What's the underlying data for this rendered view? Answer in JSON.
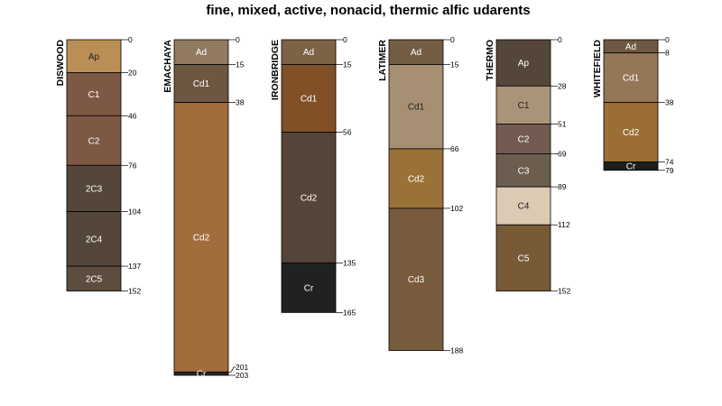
{
  "chart_data": {
    "type": "soil-profile-sketch",
    "title": "fine, mixed, active, nonacid, thermic alfic udarents",
    "depth_unit": "",
    "ylim": [
      0,
      205
    ],
    "profiles": [
      {
        "name": "DISWOOD",
        "horizons": [
          {
            "name": "Ap",
            "top": 0,
            "bottom": 20,
            "color": "#b98f55",
            "text": "#222222"
          },
          {
            "name": "C1",
            "top": 20,
            "bottom": 46,
            "color": "#7d5844",
            "text": "#ffffff"
          },
          {
            "name": "C2",
            "top": 46,
            "bottom": 76,
            "color": "#7d5844",
            "text": "#ffffff"
          },
          {
            "name": "2C3",
            "top": 76,
            "bottom": 104,
            "color": "#54473a",
            "text": "#ffffff"
          },
          {
            "name": "2C4",
            "top": 104,
            "bottom": 137,
            "color": "#54473a",
            "text": "#ffffff"
          },
          {
            "name": "2C5",
            "top": 137,
            "bottom": 152,
            "color": "#5c4d3e",
            "text": "#ffffff"
          }
        ]
      },
      {
        "name": "EMACHAYA",
        "horizons": [
          {
            "name": "Ad",
            "top": 0,
            "bottom": 15,
            "color": "#927a61",
            "text": "#ffffff"
          },
          {
            "name": "Cd1",
            "top": 15,
            "bottom": 38,
            "color": "#6d5742",
            "text": "#ffffff"
          },
          {
            "name": "Cd2",
            "top": 38,
            "bottom": 201,
            "color": "#a26d3c",
            "text": "#ffffff"
          },
          {
            "name": "Cr",
            "top": 201,
            "bottom": 203,
            "color": "#2a2724",
            "text": "#ffffff"
          }
        ]
      },
      {
        "name": "IRONBRIDGE",
        "horizons": [
          {
            "name": "Ad",
            "top": 0,
            "bottom": 15,
            "color": "#7d6346",
            "text": "#ffffff"
          },
          {
            "name": "Cd1",
            "top": 15,
            "bottom": 56,
            "color": "#825026",
            "text": "#ffffff"
          },
          {
            "name": "Cd2",
            "top": 56,
            "bottom": 135,
            "color": "#554538",
            "text": "#ffffff"
          },
          {
            "name": "Cr",
            "top": 135,
            "bottom": 165,
            "color": "#1f2221",
            "text": "#ffffff"
          }
        ]
      },
      {
        "name": "LATIMER",
        "horizons": [
          {
            "name": "Ad",
            "top": 0,
            "bottom": 15,
            "color": "#745d45",
            "text": "#ffffff"
          },
          {
            "name": "Cd1",
            "top": 15,
            "bottom": 66,
            "color": "#a68f72",
            "text": "#222222"
          },
          {
            "name": "Cd2",
            "top": 66,
            "bottom": 102,
            "color": "#9a7136",
            "text": "#ffffff"
          },
          {
            "name": "Cd3",
            "top": 102,
            "bottom": 188,
            "color": "#785a3c",
            "text": "#ffffff"
          }
        ]
      },
      {
        "name": "THERMO",
        "horizons": [
          {
            "name": "Ap",
            "top": 0,
            "bottom": 28,
            "color": "#54473a",
            "text": "#ffffff"
          },
          {
            "name": "C1",
            "top": 28,
            "bottom": 51,
            "color": "#aa9479",
            "text": "#222222"
          },
          {
            "name": "C2",
            "top": 51,
            "bottom": 69,
            "color": "#735b52",
            "text": "#ffffff"
          },
          {
            "name": "C3",
            "top": 69,
            "bottom": 89,
            "color": "#6c5e4f",
            "text": "#ffffff"
          },
          {
            "name": "C4",
            "top": 89,
            "bottom": 112,
            "color": "#ddcab4",
            "text": "#222222"
          },
          {
            "name": "C5",
            "top": 112,
            "bottom": 152,
            "color": "#785a37",
            "text": "#ffffff"
          }
        ]
      },
      {
        "name": "WHITEFIELD",
        "horizons": [
          {
            "name": "Ad",
            "top": 0,
            "bottom": 8,
            "color": "#6f5843",
            "text": "#ffffff"
          },
          {
            "name": "Cd1",
            "top": 8,
            "bottom": 38,
            "color": "#947756",
            "text": "#ffffff"
          },
          {
            "name": "Cd2",
            "top": 38,
            "bottom": 74,
            "color": "#9a6e35",
            "text": "#ffffff"
          },
          {
            "name": "Cr",
            "top": 74,
            "bottom": 79,
            "color": "#1e1e1e",
            "text": "#ffffff"
          }
        ]
      }
    ]
  }
}
